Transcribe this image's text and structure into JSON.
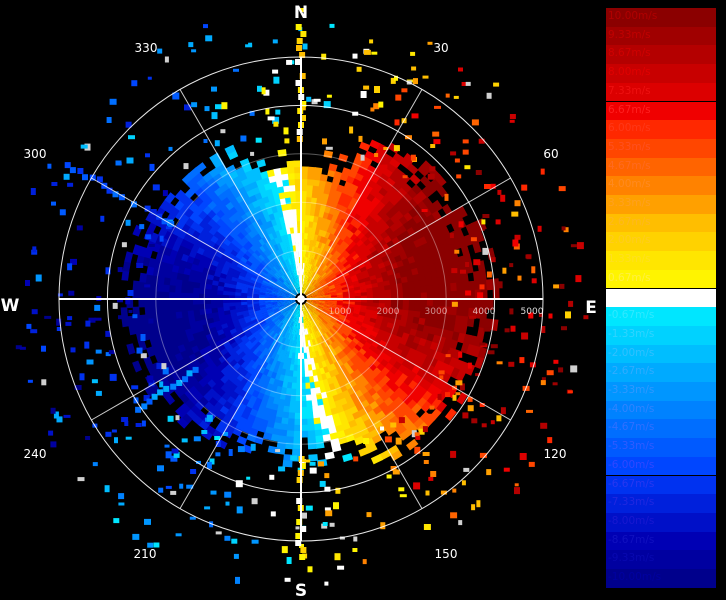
{
  "compass": {
    "north": "N",
    "east": "E",
    "south": "S",
    "west": "W"
  },
  "azimuth_labels": [
    "30",
    "60",
    "120",
    "150",
    "210",
    "240",
    "300",
    "330"
  ],
  "range_labels": [
    "1000",
    "2000",
    "3000",
    "4000",
    "5000"
  ],
  "legend": {
    "entries": [
      {
        "label": "10.00m/s",
        "color": "#8b0000",
        "text_color": "#b00000"
      },
      {
        "label": "9.33m/s",
        "color": "#a00000",
        "text_color": "#c00000"
      },
      {
        "label": "8.67m/s",
        "color": "#b40000",
        "text_color": "#d00000"
      },
      {
        "label": "8.00m/s",
        "color": "#c80000",
        "text_color": "#e00000"
      },
      {
        "label": "7.33m/s",
        "color": "#dc0000",
        "text_color": "#ee1010"
      },
      {
        "label": "6.67m/s",
        "color": "#f00000",
        "text_color": "#ff2020"
      },
      {
        "label": "6.00m/s",
        "color": "#ff2800",
        "text_color": "#ff3818"
      },
      {
        "label": "5.33m/s",
        "color": "#ff4600",
        "text_color": "#ff5020"
      },
      {
        "label": "4.67m/s",
        "color": "#ff6400",
        "text_color": "#ff6a20"
      },
      {
        "label": "4.00m/s",
        "color": "#ff8200",
        "text_color": "#ff8a20"
      },
      {
        "label": "3.33m/s",
        "color": "#ffa000",
        "text_color": "#ffa020"
      },
      {
        "label": "2.67m/s",
        "color": "#ffbe00",
        "text_color": "#ffb820"
      },
      {
        "label": "2.00m/s",
        "color": "#ffd200",
        "text_color": "#ffcc20"
      },
      {
        "label": "1.33m/s",
        "color": "#ffe600",
        "text_color": "#ffe020"
      },
      {
        "label": "0.67m/s",
        "color": "#fff400",
        "text_color": "#fff040"
      },
      {
        "label": "0.00m/s",
        "color": "#ffffff",
        "text_color": "#ffffff"
      },
      {
        "label": "-0.67m/s",
        "color": "#00e6ff",
        "text_color": "#30e8ff"
      },
      {
        "label": "-1.33m/s",
        "color": "#00d2ff",
        "text_color": "#30d4ff"
      },
      {
        "label": "-2.00m/s",
        "color": "#00beff",
        "text_color": "#30c0ff"
      },
      {
        "label": "-2.67m/s",
        "color": "#00aaff",
        "text_color": "#30acff"
      },
      {
        "label": "-3.33m/s",
        "color": "#0096ff",
        "text_color": "#3098ff"
      },
      {
        "label": "-4.00m/s",
        "color": "#0082ff",
        "text_color": "#3084ff"
      },
      {
        "label": "-4.67m/s",
        "color": "#006eff",
        "text_color": "#3070ff"
      },
      {
        "label": "-5.33m/s",
        "color": "#005aff",
        "text_color": "#305cff"
      },
      {
        "label": "-6.00m/s",
        "color": "#0046ff",
        "text_color": "#3048ff"
      },
      {
        "label": "-6.67m/s",
        "color": "#0032f0",
        "text_color": "#2838f0"
      },
      {
        "label": "-7.33m/s",
        "color": "#0020dc",
        "text_color": "#2028e0"
      },
      {
        "label": "-8.00m/s",
        "color": "#0010c8",
        "text_color": "#1818d0"
      },
      {
        "label": "-8.67m/s",
        "color": "#0000b4",
        "text_color": "#1010c0"
      },
      {
        "label": "-9.33m/s",
        "color": "#0000a0",
        "text_color": "#0808b0"
      },
      {
        "label": "-10.00m/s",
        "color": "#00008c",
        "text_color": "#0000a0"
      }
    ]
  }
}
